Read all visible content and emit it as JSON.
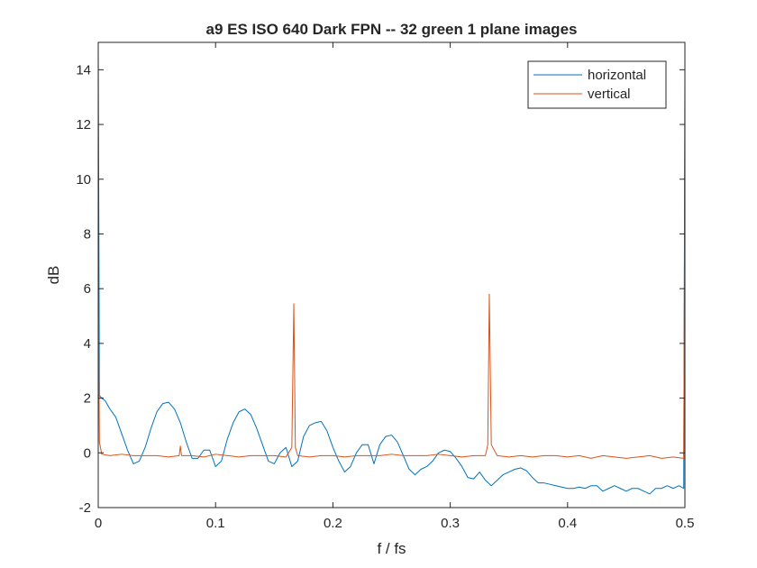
{
  "chart_data": {
    "type": "line",
    "title": "a9 ES ISO 640 Dark FPN -- 32 green 1 plane images",
    "xlabel": "f / fs",
    "ylabel": "dB",
    "xlim": [
      0,
      0.5
    ],
    "ylim": [
      -2,
      15
    ],
    "xticks": [
      0,
      0.1,
      0.2,
      0.3,
      0.4,
      0.5
    ],
    "xtick_labels": [
      "0",
      "0.1",
      "0.2",
      "0.3",
      "0.4",
      "0.5"
    ],
    "yticks": [
      -2,
      0,
      2,
      4,
      6,
      8,
      10,
      12,
      14
    ],
    "ytick_labels": [
      "-2",
      "0",
      "2",
      "4",
      "6",
      "8",
      "10",
      "12",
      "14"
    ],
    "grid": false,
    "legend_position": "top-right",
    "series": [
      {
        "name": "horizontal",
        "color": "#0072BD",
        "x": [
          0,
          0.001,
          0.003,
          0.006,
          0.01,
          0.015,
          0.02,
          0.025,
          0.03,
          0.035,
          0.04,
          0.045,
          0.05,
          0.055,
          0.06,
          0.065,
          0.07,
          0.075,
          0.08,
          0.085,
          0.09,
          0.095,
          0.1,
          0.105,
          0.11,
          0.115,
          0.12,
          0.125,
          0.13,
          0.135,
          0.14,
          0.145,
          0.15,
          0.155,
          0.16,
          0.165,
          0.17,
          0.175,
          0.18,
          0.185,
          0.19,
          0.195,
          0.2,
          0.205,
          0.21,
          0.215,
          0.22,
          0.225,
          0.23,
          0.235,
          0.24,
          0.245,
          0.25,
          0.255,
          0.26,
          0.265,
          0.27,
          0.275,
          0.28,
          0.285,
          0.29,
          0.295,
          0.3,
          0.305,
          0.31,
          0.315,
          0.32,
          0.325,
          0.33,
          0.335,
          0.34,
          0.345,
          0.35,
          0.355,
          0.36,
          0.365,
          0.37,
          0.375,
          0.38,
          0.385,
          0.39,
          0.395,
          0.4,
          0.405,
          0.41,
          0.415,
          0.42,
          0.425,
          0.43,
          0.435,
          0.44,
          0.445,
          0.45,
          0.455,
          0.46,
          0.465,
          0.47,
          0.475,
          0.48,
          0.485,
          0.49,
          0.495,
          0.499,
          0.5
        ],
        "y": [
          15,
          2.1,
          2.0,
          1.9,
          1.6,
          1.3,
          0.7,
          0.1,
          -0.4,
          -0.3,
          0.2,
          0.9,
          1.5,
          1.8,
          1.85,
          1.6,
          1.1,
          0.4,
          -0.2,
          -0.2,
          0.1,
          0.1,
          -0.5,
          -0.3,
          0.5,
          1.1,
          1.5,
          1.6,
          1.4,
          0.9,
          0.3,
          -0.3,
          -0.4,
          0.0,
          0.2,
          -0.5,
          -0.3,
          0.6,
          1.0,
          1.1,
          1.15,
          0.8,
          0.2,
          -0.3,
          -0.7,
          -0.5,
          0.0,
          0.3,
          0.3,
          -0.4,
          0.3,
          0.6,
          0.65,
          0.4,
          -0.1,
          -0.6,
          -0.8,
          -0.6,
          -0.5,
          -0.3,
          0.0,
          0.1,
          0.05,
          -0.2,
          -0.5,
          -0.9,
          -0.95,
          -0.7,
          -1.0,
          -1.2,
          -1.0,
          -0.8,
          -0.7,
          -0.6,
          -0.55,
          -0.65,
          -0.9,
          -1.1,
          -1.1,
          -1.15,
          -1.2,
          -1.25,
          -1.3,
          -1.3,
          -1.25,
          -1.3,
          -1.2,
          -1.2,
          -1.4,
          -1.3,
          -1.2,
          -1.3,
          -1.4,
          -1.3,
          -1.3,
          -1.4,
          -1.5,
          -1.3,
          -1.3,
          -1.2,
          -1.3,
          -1.2,
          -1.3,
          14
        ]
      },
      {
        "name": "vertical",
        "color": "#D95319",
        "x": [
          0,
          0.001,
          0.003,
          0.01,
          0.02,
          0.03,
          0.04,
          0.05,
          0.06,
          0.069,
          0.07,
          0.071,
          0.08,
          0.09,
          0.1,
          0.11,
          0.12,
          0.13,
          0.14,
          0.15,
          0.16,
          0.165,
          0.1667,
          0.168,
          0.17,
          0.18,
          0.19,
          0.2,
          0.21,
          0.22,
          0.23,
          0.24,
          0.25,
          0.26,
          0.27,
          0.28,
          0.29,
          0.3,
          0.31,
          0.32,
          0.33,
          0.332,
          0.3333,
          0.335,
          0.34,
          0.35,
          0.36,
          0.37,
          0.38,
          0.39,
          0.4,
          0.41,
          0.42,
          0.43,
          0.44,
          0.45,
          0.46,
          0.47,
          0.48,
          0.49,
          0.499,
          0.5
        ],
        "y": [
          6.5,
          0.4,
          -0.05,
          -0.1,
          -0.05,
          -0.1,
          -0.1,
          -0.1,
          -0.15,
          -0.1,
          0.25,
          -0.1,
          -0.1,
          -0.15,
          -0.05,
          -0.1,
          -0.15,
          -0.1,
          -0.1,
          -0.1,
          -0.15,
          0.2,
          5.45,
          0.2,
          -0.1,
          -0.15,
          -0.1,
          -0.1,
          -0.15,
          -0.1,
          -0.1,
          -0.1,
          -0.05,
          -0.1,
          -0.1,
          -0.1,
          -0.05,
          -0.1,
          -0.15,
          -0.1,
          -0.1,
          0.3,
          5.8,
          0.3,
          -0.1,
          -0.15,
          -0.1,
          -0.15,
          -0.1,
          -0.1,
          -0.15,
          -0.1,
          -0.2,
          -0.1,
          -0.15,
          -0.2,
          -0.15,
          -0.1,
          -0.2,
          -0.15,
          -0.2,
          11.5
        ]
      }
    ]
  }
}
